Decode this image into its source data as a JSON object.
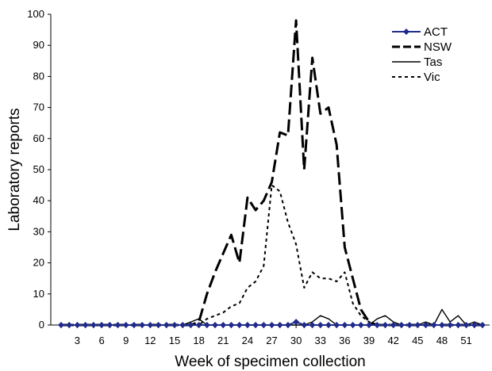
{
  "chart_data": {
    "type": "line",
    "title": "",
    "xlabel": "Week of specimen collection",
    "ylabel": "Laboratory reports",
    "ylim": [
      0,
      100
    ],
    "xlim": [
      1,
      53
    ],
    "y_ticks": [
      0,
      10,
      20,
      30,
      40,
      50,
      60,
      70,
      80,
      90,
      100
    ],
    "x_ticks": [
      3,
      6,
      9,
      12,
      15,
      18,
      21,
      24,
      27,
      30,
      33,
      36,
      39,
      42,
      45,
      48,
      51
    ],
    "grid": false,
    "legend_position": "top-right",
    "x": [
      1,
      2,
      3,
      4,
      5,
      6,
      7,
      8,
      9,
      10,
      11,
      12,
      13,
      14,
      15,
      16,
      17,
      18,
      19,
      20,
      21,
      22,
      23,
      24,
      25,
      26,
      27,
      28,
      29,
      30,
      31,
      32,
      33,
      34,
      35,
      36,
      37,
      38,
      39,
      40,
      41,
      42,
      43,
      44,
      45,
      46,
      47,
      48,
      49,
      50,
      51,
      52,
      53
    ],
    "series": [
      {
        "name": "ACT",
        "color": "#1f2a8c",
        "style": "solid-diamond",
        "values": [
          0,
          0,
          0,
          0,
          0,
          0,
          0,
          0,
          0,
          0,
          0,
          0,
          0,
          0,
          0,
          0,
          0,
          0,
          0,
          0,
          0,
          0,
          0,
          0,
          0,
          0,
          0,
          0,
          0,
          1,
          0,
          0,
          0,
          0,
          0,
          0,
          0,
          0,
          0,
          0,
          0,
          0,
          0,
          0,
          0,
          0,
          0,
          0,
          0,
          0,
          0,
          0,
          0
        ]
      },
      {
        "name": "NSW",
        "color": "#000000",
        "style": "long-dash-bold",
        "values": [
          0,
          0,
          0,
          0,
          0,
          0,
          0,
          0,
          0,
          0,
          0,
          0,
          0,
          0,
          0,
          0,
          0,
          1,
          10,
          17,
          23,
          29,
          20,
          41,
          37,
          40,
          46,
          62,
          61,
          98,
          50,
          86,
          68,
          70,
          58,
          25,
          15,
          5,
          1,
          0,
          0,
          0,
          0,
          0,
          0,
          0,
          0,
          0,
          0,
          0,
          0,
          0,
          0
        ]
      },
      {
        "name": "Tas",
        "color": "#000000",
        "style": "solid",
        "values": [
          0,
          0,
          0,
          0,
          0,
          0,
          0,
          0,
          0,
          0,
          0,
          0,
          0,
          0,
          0,
          0,
          1,
          2,
          0,
          0,
          0,
          0,
          0,
          0,
          0,
          0,
          0,
          0,
          0,
          0,
          0,
          1,
          3,
          2,
          0,
          0,
          0,
          0,
          0,
          2,
          3,
          1,
          0,
          0,
          0,
          1,
          0,
          5,
          1,
          3,
          0,
          1,
          0
        ]
      },
      {
        "name": "Vic",
        "color": "#000000",
        "style": "dotted",
        "values": [
          0,
          0,
          0,
          0,
          0,
          0,
          0,
          0,
          0,
          0,
          0,
          0,
          0,
          0,
          0,
          0,
          0,
          0,
          2,
          3,
          4,
          6,
          7,
          12,
          14,
          19,
          45,
          43,
          33,
          26,
          12,
          17,
          15,
          15,
          14,
          17,
          7,
          3,
          1,
          0,
          0,
          0,
          0,
          0,
          0,
          0,
          0,
          0,
          0,
          0,
          0,
          0,
          0
        ]
      }
    ]
  }
}
